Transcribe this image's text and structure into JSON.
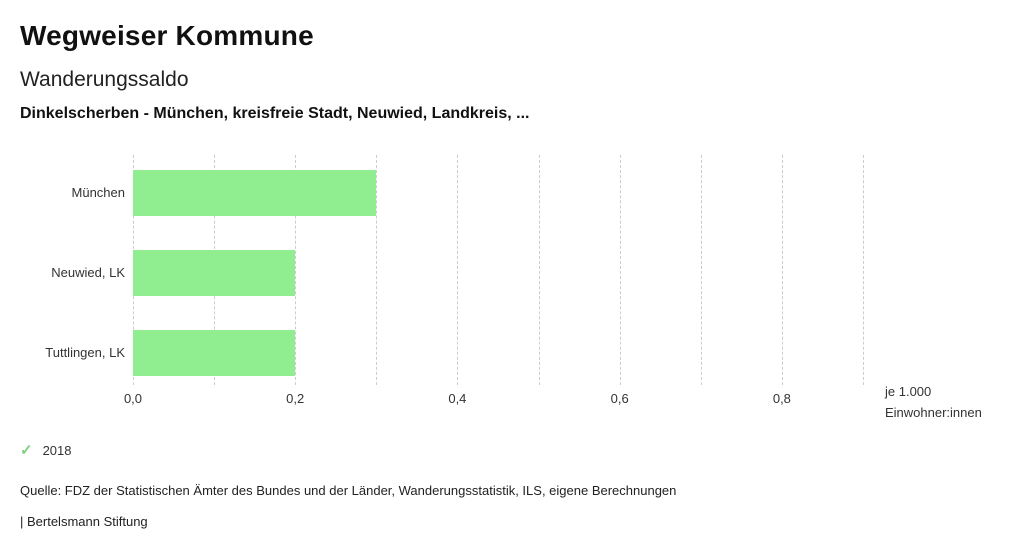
{
  "header": {
    "title": "Wegweiser Kommune",
    "subtitle": "Wanderungssaldo",
    "description": "Dinkelscherben - München, kreisfreie Stadt, Neuwied, Landkreis, ..."
  },
  "chart_data": {
    "type": "bar",
    "orientation": "horizontal",
    "title": "Wanderungssaldo",
    "subtitle": "Dinkelscherben - München, kreisfreie Stadt, Neuwied, Landkreis, ...",
    "categories": [
      "München",
      "Neuwied, LK",
      "Tuttlingen, LK"
    ],
    "series": [
      {
        "name": "2018",
        "values": [
          0.3,
          0.2,
          0.2
        ]
      }
    ],
    "xlim": [
      0,
      0.9
    ],
    "grid_step": 0.1,
    "x_ticks": [
      0.0,
      0.2,
      0.4,
      0.6,
      0.8
    ],
    "x_tick_labels": [
      "0,0",
      "0,2",
      "0,4",
      "0,6",
      "0,8"
    ],
    "unit_label_line1": "je 1.000",
    "unit_label_line2": "Einwohner:innen",
    "bar_color": "#90ee90",
    "gridline_color": "#cccccc",
    "grid": true,
    "legend_position": "bottom-left"
  },
  "legend": {
    "items": [
      {
        "label": "2018",
        "check_icon": "✓",
        "check_color": "#7fd07f"
      }
    ]
  },
  "footer": {
    "source": "Quelle: FDZ der Statistischen Ämter des Bundes und der Länder, Wanderungsstatistik, ILS, eigene Berechnungen",
    "attribution": "| Bertelsmann Stiftung"
  }
}
